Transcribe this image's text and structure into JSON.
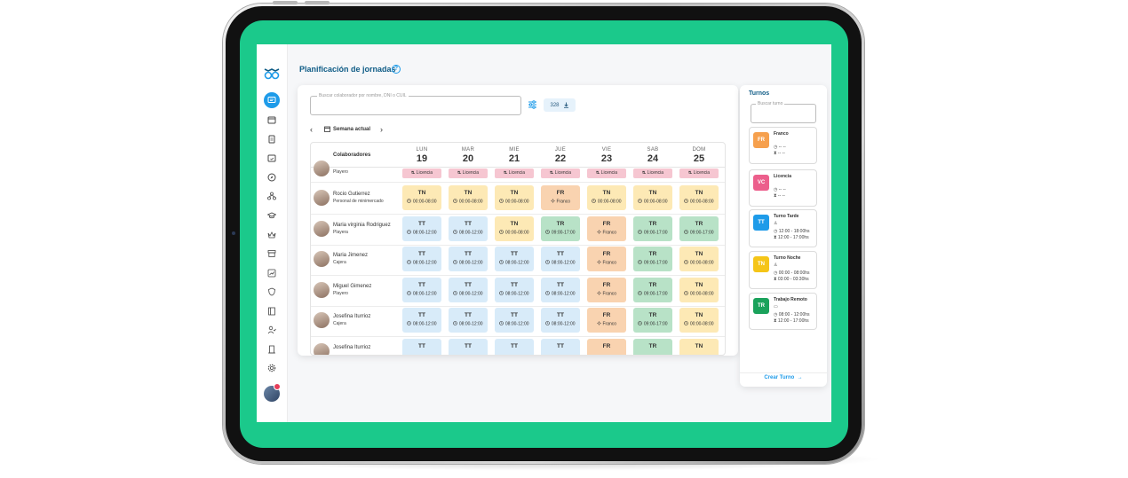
{
  "page": {
    "title": "Planificación de jornadas",
    "help_icon": "help-circle-icon"
  },
  "rail": {
    "logo_icon": "owl-logo-icon",
    "items": [
      "chat-icon",
      "calendar-icon",
      "document-icon",
      "calendar-check-icon",
      "compass-icon",
      "org-chart-icon",
      "graduation-cap-icon",
      "crown-icon",
      "archive-icon",
      "chart-icon",
      "shield-icon",
      "book-icon",
      "team-icon",
      "door-icon",
      "gear-icon"
    ],
    "avatar_icon": "user-avatar-icon"
  },
  "toolbar": {
    "search_placeholder": "Buscar colaborador por nombre, DNI o CUIL",
    "filter_icon": "filter-sliders-icon",
    "count": "328",
    "download_icon": "download-icon"
  },
  "week": {
    "label": "Semana actual",
    "prev_icon": "chevron-left-icon",
    "next_icon": "chevron-right-icon",
    "calendar_icon": "calendar-icon"
  },
  "grid": {
    "column_header": "Colaboradores",
    "days": [
      {
        "name": "LUN",
        "date": "19"
      },
      {
        "name": "MAR",
        "date": "20"
      },
      {
        "name": "MIE",
        "date": "21"
      },
      {
        "name": "JUE",
        "date": "22"
      },
      {
        "name": "VIE",
        "date": "23"
      },
      {
        "name": "SAB",
        "date": "24"
      },
      {
        "name": "DOM",
        "date": "25"
      }
    ],
    "first_row": {
      "role": "Playero",
      "cell_label": "Licencia"
    },
    "rows": [
      {
        "name": "Rocio Gutierrez",
        "role": "Personal de minimercado",
        "cells": [
          [
            "TN",
            "00:00-08:00"
          ],
          [
            "TN",
            "00:00-08:00"
          ],
          [
            "TN",
            "00:00-08:00"
          ],
          [
            "FR",
            "Franco"
          ],
          [
            "TN",
            "00:00-08:00"
          ],
          [
            "TN",
            "00:00-08:00"
          ],
          [
            "TN",
            "00:00-08:00"
          ]
        ]
      },
      {
        "name": "Maria virginia Rodriguez",
        "role": "Playera",
        "cells": [
          [
            "TT",
            "08:00-12:00"
          ],
          [
            "TT",
            "08:00-12:00"
          ],
          [
            "TN",
            "00:00-08:00"
          ],
          [
            "TR",
            "09:00-17:00"
          ],
          [
            "FR",
            "Franco"
          ],
          [
            "TR",
            "09:00-17:00"
          ],
          [
            "TR",
            "09:00-17:00"
          ]
        ]
      },
      {
        "name": "Maria Jimenez",
        "role": "Cajera",
        "cells": [
          [
            "TT",
            "08:00-12:00"
          ],
          [
            "TT",
            "08:00-12:00"
          ],
          [
            "TT",
            "08:00-12:00"
          ],
          [
            "TT",
            "08:00-12:00"
          ],
          [
            "FR",
            "Franco"
          ],
          [
            "TR",
            "09:00-17:00"
          ],
          [
            "TN",
            "00:00-08:00"
          ]
        ]
      },
      {
        "name": "Miguel Gimenez",
        "role": "Playero",
        "cells": [
          [
            "TT",
            "08:00-12:00"
          ],
          [
            "TT",
            "08:00-12:00"
          ],
          [
            "TT",
            "08:00-12:00"
          ],
          [
            "TT",
            "08:00-12:00"
          ],
          [
            "FR",
            "Franco"
          ],
          [
            "TR",
            "09:00-17:00"
          ],
          [
            "TN",
            "00:00-08:00"
          ]
        ]
      },
      {
        "name": "Josefina Iturrioz",
        "role": "Cajera",
        "cells": [
          [
            "TT",
            "08:00-12:00"
          ],
          [
            "TT",
            "08:00-12:00"
          ],
          [
            "TT",
            "08:00-12:00"
          ],
          [
            "TT",
            "08:00-12:00"
          ],
          [
            "FR",
            "Franco"
          ],
          [
            "TR",
            "09:00-17:00"
          ],
          [
            "TN",
            "00:00-08:00"
          ]
        ]
      },
      {
        "name": "Josefina Iturrioz",
        "role": "",
        "cells": [
          [
            "TT",
            ""
          ],
          [
            "TT",
            ""
          ],
          [
            "TT",
            ""
          ],
          [
            "TT",
            ""
          ],
          [
            "FR",
            ""
          ],
          [
            "TR",
            ""
          ],
          [
            "TN",
            ""
          ]
        ]
      }
    ]
  },
  "shift_colors": {
    "TN": "#fde9b5",
    "TT": "#d8ebf9",
    "FR": "#f9d3b0",
    "TR": "#b8e2c7",
    "Licencia": "#f6c6d1"
  },
  "turnos": {
    "title": "Turnos",
    "search_placeholder": "Buscar turno",
    "cards": [
      {
        "code": "FR",
        "color": "#f6a04d",
        "name": "Franco",
        "icon": "",
        "line1": "-- --",
        "line2": "-- --"
      },
      {
        "code": "VC",
        "color": "#ec5f8c",
        "name": "Licencia",
        "icon": "",
        "line1": "-- --",
        "line2": "-- --"
      },
      {
        "code": "TT",
        "color": "#1e9be9",
        "name": "Turno Tarde",
        "icon": "user-icon",
        "line1": "12:00 - 18:00hs",
        "line2": "12:00 - 17:00hs"
      },
      {
        "code": "TN",
        "color": "#f5c518",
        "name": "Turno Noche",
        "icon": "user-icon",
        "line1": "00:00 - 08:00hs",
        "line2": "03:00 - 03:30hs"
      },
      {
        "code": "TR",
        "color": "#1aa25b",
        "name": "Trabajo Remoto",
        "icon": "laptop-icon",
        "line1": "08:00 - 12:00hs",
        "line2": "12:00 - 17:00hs"
      }
    ],
    "create_label": "Crear Turno",
    "create_icon": "arrow-right-icon"
  }
}
